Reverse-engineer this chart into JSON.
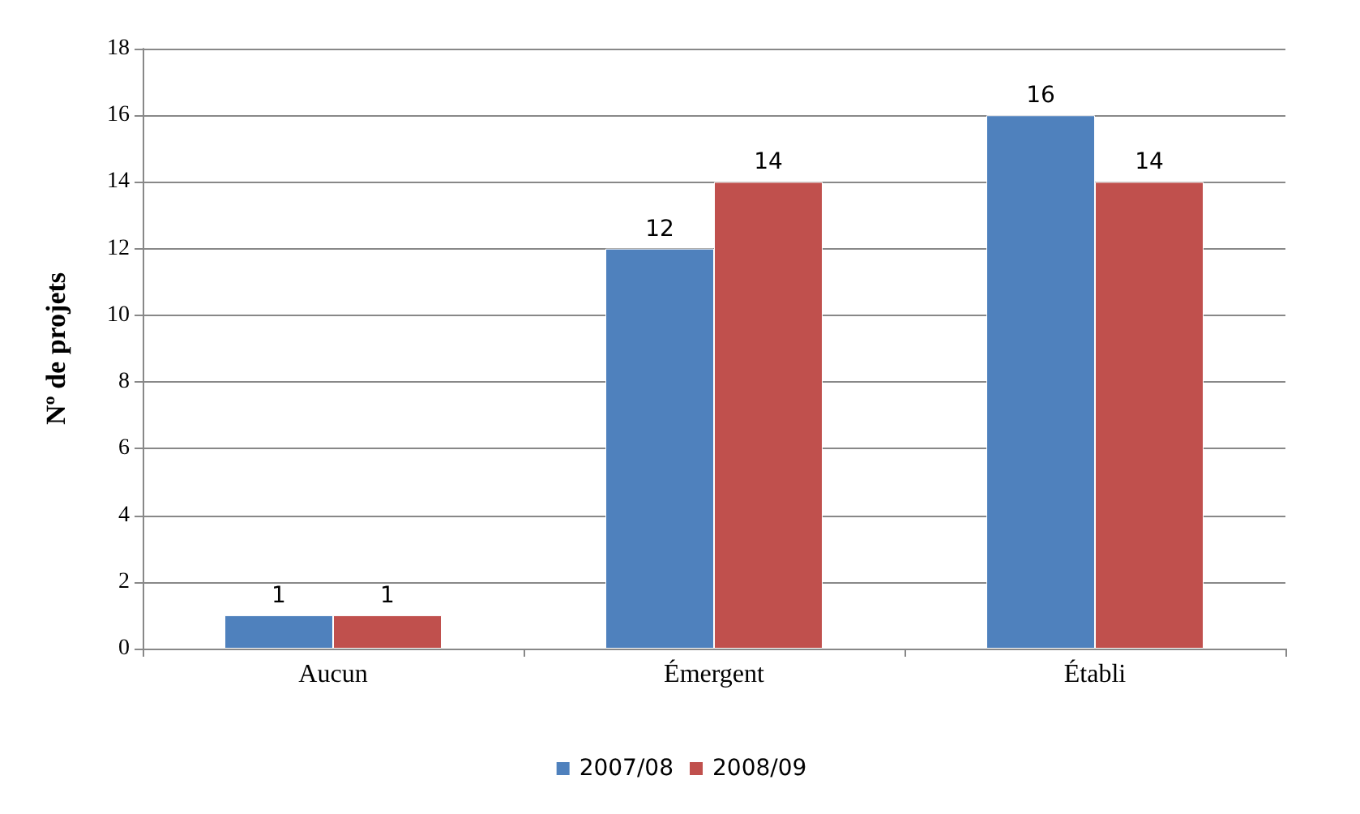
{
  "chart_data": {
    "type": "bar",
    "ylabel": "Nº de projets",
    "categories": [
      "Aucun",
      "Émergent",
      "Établi"
    ],
    "series": [
      {
        "name": "2007/08",
        "color": "#4f81bd",
        "values": [
          1,
          12,
          16
        ]
      },
      {
        "name": "2008/09",
        "color": "#c0504d",
        "values": [
          1,
          14,
          14
        ]
      }
    ],
    "ylim": [
      0,
      18
    ],
    "yticks": [
      0,
      2,
      4,
      6,
      8,
      10,
      12,
      14,
      16,
      18
    ],
    "grid": "y",
    "legend": "bottom",
    "data_labels": true
  }
}
